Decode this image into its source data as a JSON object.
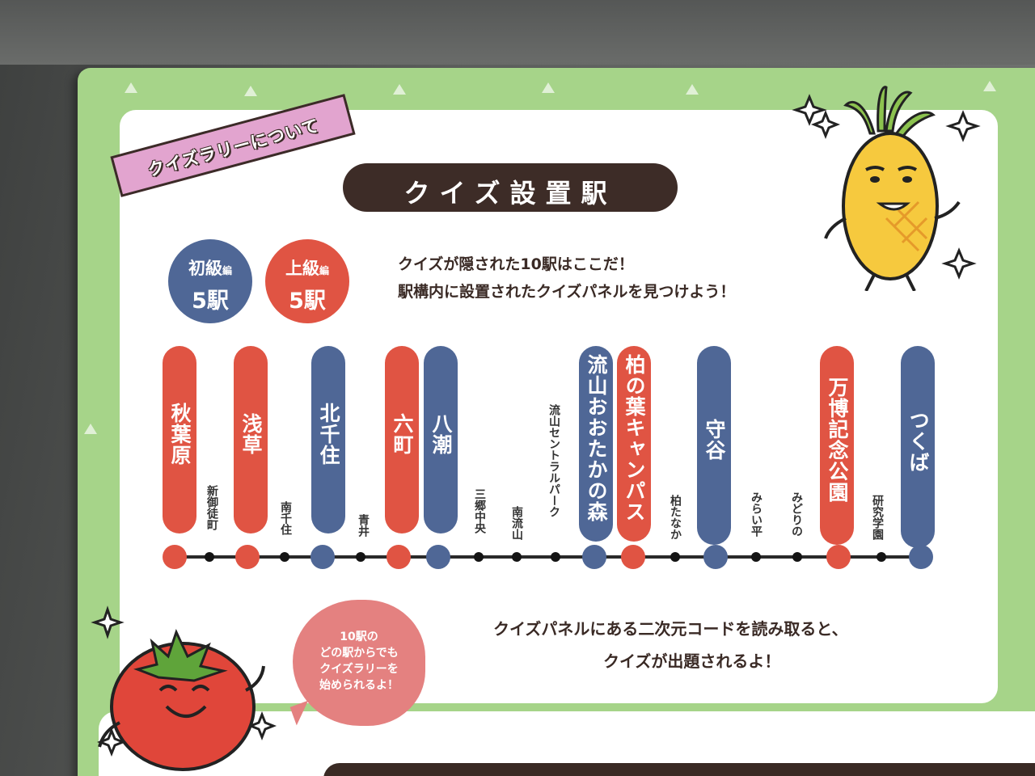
{
  "header": {
    "ribbon": "クイズラリーについて",
    "title": "クイズ設置駅"
  },
  "levels": [
    {
      "name": "初級",
      "suffix": "編",
      "count": "5駅",
      "color": "#4f6796"
    },
    {
      "name": "上級",
      "suffix": "編",
      "count": "5駅",
      "color": "#e05443"
    }
  ],
  "intro": {
    "line1": "クイズが隠された10駅はここだ！",
    "line2": "駅構内に設置されたクイズパネルを見つけよう！"
  },
  "stations": [
    {
      "name": "秋葉原",
      "level": "上級"
    },
    {
      "name": "新御徒町"
    },
    {
      "name": "浅草",
      "level": "上級"
    },
    {
      "name": "南千住"
    },
    {
      "name": "北千住",
      "level": "初級"
    },
    {
      "name": "青井"
    },
    {
      "name": "六町",
      "level": "上級"
    },
    {
      "name": "八潮",
      "level": "初級"
    },
    {
      "name": "三郷中央"
    },
    {
      "name": "南流山"
    },
    {
      "name": "流山セントラルパーク"
    },
    {
      "name": "流山おおたかの森",
      "level": "初級"
    },
    {
      "name": "柏の葉キャンパス",
      "level": "上級"
    },
    {
      "name": "柏たなか"
    },
    {
      "name": "守谷",
      "level": "初級"
    },
    {
      "name": "みらい平"
    },
    {
      "name": "みどりの"
    },
    {
      "name": "万博記念公園",
      "level": "上級"
    },
    {
      "name": "研究学園"
    },
    {
      "name": "つくば",
      "level": "初級"
    }
  ],
  "bottom": {
    "line1": "クイズパネルにある二次元コードを読み取ると、",
    "line2": "クイズが出題されるよ！"
  },
  "speech": {
    "lines": [
      "10駅の",
      "どの駅からでも",
      "クイズラリーを",
      "始められるよ！"
    ]
  },
  "colors": {
    "red": "#e05443",
    "blue": "#4f6796",
    "green": "#a6d489",
    "dark": "#3d2c27",
    "pink": "#e2a4cf"
  }
}
